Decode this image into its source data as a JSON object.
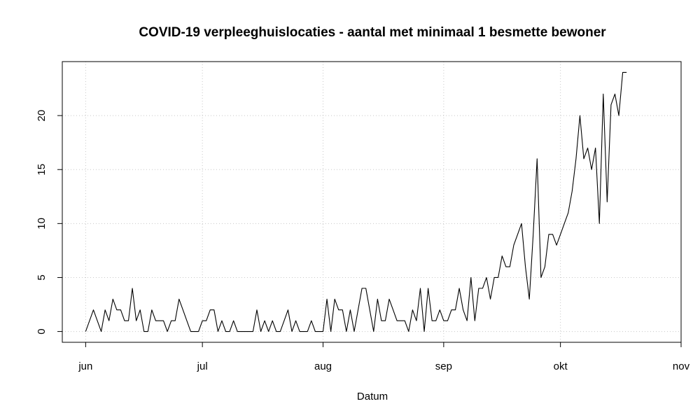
{
  "chart_data": {
    "type": "line",
    "title": "COVID-19 verpleeghuislocaties - aantal met minimaal 1 besmette bewoner",
    "xlabel": "Datum",
    "ylabel": "",
    "x_ticks": [
      {
        "date": "2020-06-01",
        "label": "jun"
      },
      {
        "date": "2020-07-01",
        "label": "jul"
      },
      {
        "date": "2020-08-01",
        "label": "aug"
      },
      {
        "date": "2020-09-01",
        "label": "sep"
      },
      {
        "date": "2020-10-01",
        "label": "okt"
      },
      {
        "date": "2020-11-01",
        "label": "nov"
      }
    ],
    "y_ticks": [
      0,
      5,
      10,
      15,
      20
    ],
    "xlim": [
      "2020-05-26",
      "2020-11-01"
    ],
    "ylim": [
      -1,
      25
    ],
    "grid": true,
    "grid_style": "dotted",
    "line_color": "#000000",
    "series": [
      {
        "start_date": "2020-06-01",
        "values": [
          0,
          1,
          2,
          1,
          0,
          2,
          1,
          3,
          2,
          2,
          1,
          1,
          4,
          1,
          2,
          0,
          0,
          2,
          1,
          1,
          1,
          0,
          1,
          1,
          3,
          2,
          1,
          0,
          0,
          0,
          1,
          1,
          2,
          2,
          0,
          1,
          0,
          0,
          1,
          0,
          0,
          0,
          0,
          0,
          2,
          0,
          1,
          0,
          1,
          0,
          0,
          1,
          2,
          0,
          1,
          0,
          0,
          0,
          1,
          0,
          0,
          0,
          3,
          0,
          3,
          2,
          2,
          0,
          2,
          0,
          2,
          4,
          4,
          2,
          0,
          3,
          1,
          1,
          3,
          2,
          1,
          1,
          1,
          0,
          2,
          1,
          4,
          0,
          4,
          1,
          1,
          2,
          1,
          1,
          2,
          2,
          4,
          2,
          1,
          5,
          1,
          4,
          4,
          5,
          3,
          5,
          5,
          7,
          6,
          6,
          8,
          9,
          10,
          6,
          3,
          9,
          16,
          5,
          6,
          9,
          9,
          8,
          9,
          10,
          11,
          13,
          16,
          20,
          16,
          17,
          15,
          17,
          10,
          22,
          12,
          21,
          22,
          20,
          24,
          24
        ]
      }
    ]
  }
}
